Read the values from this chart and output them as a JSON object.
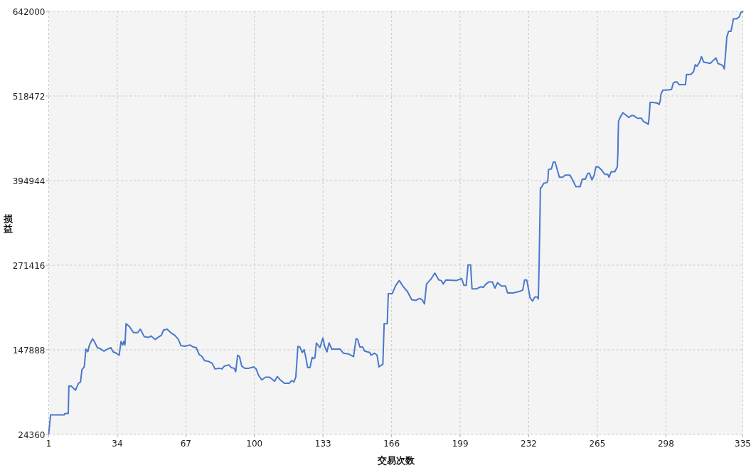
{
  "chart_data": {
    "type": "line",
    "xlabel": "交易次数",
    "ylabel": "损益",
    "x": [
      1,
      1.9,
      8.5,
      8.8,
      10.4,
      10.7,
      11.8,
      13.9,
      15.3,
      16.3,
      17,
      18.1,
      18.9,
      19.8,
      20.6,
      22.1,
      23,
      24.4,
      25.5,
      27.6,
      29.3,
      30.9,
      32,
      33.5,
      34.9,
      35.8,
      36.6,
      37.1,
      37.7,
      38.2,
      39.8,
      41.8,
      43.8,
      45.1,
      47,
      48.9,
      50.2,
      52.3,
      54,
      55.2,
      56.3,
      58,
      59.7,
      61.7,
      63.4,
      64.6,
      66.6,
      68.9,
      70.6,
      72,
      73.4,
      74.8,
      76,
      78,
      79.7,
      81,
      83.1,
      84.4,
      85.4,
      87.7,
      88.8,
      90.2,
      91,
      91.9,
      92.8,
      93.9,
      95.3,
      97.3,
      99.6,
      100.8,
      102.1,
      103.6,
      105.3,
      107.3,
      109.7,
      111,
      112.4,
      114.4,
      116.7,
      117.9,
      119,
      119.9,
      120.9,
      121.9,
      123,
      123.9,
      124.7,
      125.6,
      126.7,
      127.8,
      128.4,
      129.1,
      129.8,
      131.5,
      132.9,
      133.8,
      134.9,
      135.9,
      137.2,
      141.2,
      142.7,
      145.2,
      147.7,
      148.9,
      149.7,
      150.7,
      152.1,
      153,
      155.5,
      156.1,
      157.8,
      159,
      159.9,
      161.8,
      162.4,
      163.9,
      164.4,
      166.3,
      168,
      169.7,
      171.4,
      173.6,
      175.7,
      177.6,
      179.4,
      180.7,
      181.8,
      182.8,
      184.9,
      186.8,
      188.7,
      189.9,
      190.8,
      192.2,
      197.1,
      199.7,
      200.8,
      201.9,
      202.8,
      204,
      204.7,
      207,
      208.8,
      210.2,
      211.1,
      212.7,
      214.5,
      215.7,
      217,
      218.8,
      220.8,
      221.8,
      224.5,
      227.3,
      229.1,
      230,
      231,
      231.6,
      232.6,
      233.8,
      234.9,
      236.2,
      236.6,
      237,
      237.3,
      237.6,
      238.1,
      239.2,
      240.7,
      241.2,
      241.5,
      242.9,
      243.8,
      244.7,
      245.7,
      246.7,
      248.4,
      249.5,
      251.8,
      252.9,
      254.7,
      256.7,
      257.7,
      259.2,
      260.3,
      261.2,
      262.4,
      263.5,
      264.3,
      265.5,
      267.2,
      268.6,
      270,
      270.6,
      271.7,
      273.4,
      274.6,
      274.9,
      275,
      275.2,
      276.1,
      277.3,
      279,
      280.2,
      281.3,
      282.4,
      284.2,
      286.2,
      287.2,
      288.7,
      289.5,
      289.9,
      290.4,
      291.6,
      293.9,
      294.7,
      295.3,
      295.6,
      296.5,
      298.4,
      300.7,
      301.5,
      302.4,
      303.4,
      304.3,
      307.4,
      307.9,
      310,
      311.3,
      312.1,
      313,
      314.2,
      315.1,
      316.2,
      319.3,
      321,
      322.1,
      323,
      324.7,
      325.5,
      326.1,
      326.5,
      326.9,
      327.3,
      328.2,
      329.3,
      330.2,
      330.4,
      331.9,
      333.3,
      334,
      335
    ],
    "series": [
      {
        "color": "#4a78cc",
        "values": [
          25000,
          53000,
          53000,
          55000,
          55000,
          95000,
          95000,
          89000,
          99000,
          101000,
          119000,
          123000,
          149000,
          145000,
          155000,
          164000,
          160000,
          151000,
          150000,
          146000,
          149000,
          151000,
          145000,
          143000,
          140000,
          160000,
          155000,
          160000,
          155000,
          186000,
          182000,
          173000,
          173000,
          178000,
          167000,
          166000,
          168000,
          163000,
          167000,
          169000,
          177000,
          178000,
          173000,
          169000,
          163000,
          154000,
          153000,
          155000,
          152000,
          151000,
          141000,
          138000,
          132000,
          131000,
          128000,
          120000,
          121000,
          120000,
          124000,
          126000,
          122000,
          121000,
          116000,
          140000,
          138000,
          124000,
          121000,
          121000,
          123000,
          120000,
          110000,
          104000,
          108000,
          108000,
          102000,
          109000,
          104000,
          99000,
          99000,
          103000,
          101000,
          108000,
          153000,
          152000,
          144000,
          148000,
          137000,
          122000,
          122000,
          137000,
          135000,
          136000,
          158000,
          151000,
          165000,
          153000,
          145000,
          158000,
          149000,
          149000,
          143000,
          142000,
          138000,
          164000,
          163000,
          152000,
          152000,
          146000,
          144000,
          140000,
          143000,
          140000,
          123000,
          127000,
          186000,
          186000,
          230000,
          230000,
          242000,
          249000,
          241000,
          233000,
          221000,
          220000,
          223000,
          221000,
          215000,
          244000,
          251000,
          260000,
          250000,
          249000,
          244000,
          250000,
          249000,
          252000,
          242000,
          242000,
          272000,
          272000,
          237000,
          237000,
          240000,
          239000,
          243000,
          247000,
          247000,
          238000,
          246000,
          241000,
          241000,
          231000,
          231000,
          233000,
          235000,
          250000,
          250000,
          241000,
          224000,
          219000,
          225000,
          225000,
          222000,
          276000,
          330000,
          384000,
          385000,
          391000,
          392000,
          396000,
          411000,
          412000,
          422000,
          422000,
          411000,
          400000,
          400000,
          403000,
          403000,
          397000,
          386000,
          386000,
          397000,
          397000,
          405000,
          406000,
          396000,
          403000,
          415000,
          415000,
          410000,
          404000,
          404000,
          400000,
          408000,
          408000,
          415000,
          437000,
          460000,
          482000,
          488000,
          494000,
          490000,
          487000,
          490000,
          490000,
          486000,
          486000,
          481000,
          479000,
          477000,
          487000,
          509000,
          509000,
          508000,
          506000,
          512000,
          521000,
          527000,
          527000,
          528000,
          537000,
          539000,
          539000,
          535000,
          535000,
          550000,
          550000,
          554000,
          564000,
          562000,
          568000,
          576000,
          568000,
          566000,
          571000,
          574000,
          566000,
          564000,
          562000,
          558000,
          573000,
          588000,
          605000,
          613000,
          613000,
          626000,
          631000,
          631000,
          634000,
          640000,
          642000
        ]
      }
    ],
    "xlim": [
      1,
      335
    ],
    "ylim": [
      24360,
      642000
    ],
    "xticks": [
      1,
      34,
      67,
      100,
      133,
      166,
      199,
      232,
      265,
      298,
      335
    ],
    "yticks": [
      24360,
      147888,
      271416,
      394944,
      518472,
      642000
    ],
    "grid": true
  }
}
